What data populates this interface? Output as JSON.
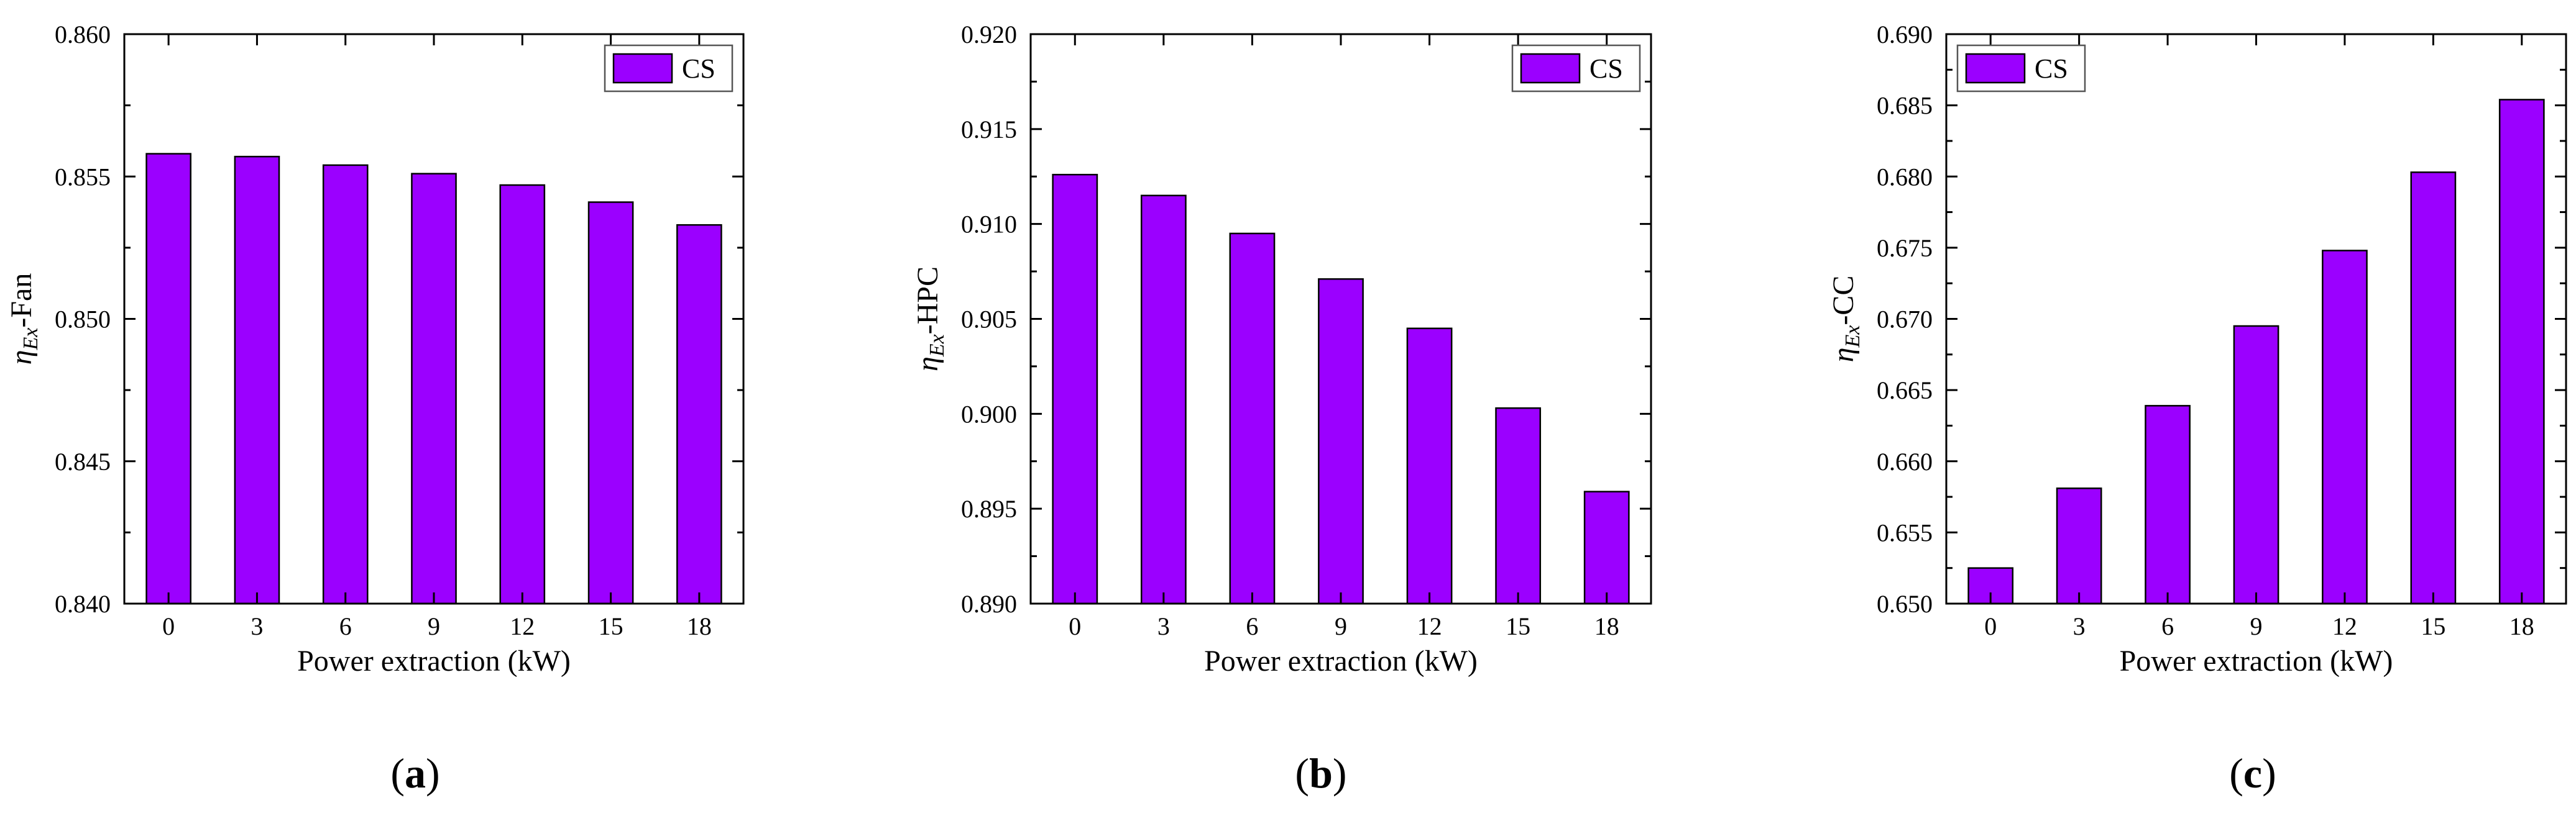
{
  "chart_data": [
    {
      "type": "bar",
      "panel_label": "a",
      "categories": [
        "0",
        "3",
        "6",
        "9",
        "12",
        "15",
        "18"
      ],
      "series": [
        {
          "name": "CS",
          "values": [
            0.8558,
            0.8557,
            0.8554,
            0.8551,
            0.8547,
            0.8541,
            0.8533
          ]
        }
      ],
      "xlabel": "Power extraction (kW)",
      "ylabel": {
        "symbol": "η",
        "subscript": "Ex",
        "suffix": "-Fan"
      },
      "ylim": [
        0.84,
        0.86
      ],
      "ymajor_ticks": [
        "0.840",
        "0.845",
        "0.850",
        "0.855",
        "0.860"
      ],
      "legend": {
        "entries": [
          "CS"
        ],
        "position": "top-right"
      }
    },
    {
      "type": "bar",
      "panel_label": "b",
      "categories": [
        "0",
        "3",
        "6",
        "9",
        "12",
        "15",
        "18"
      ],
      "series": [
        {
          "name": "CS",
          "values": [
            0.9126,
            0.9115,
            0.9095,
            0.9071,
            0.9045,
            0.9003,
            0.8959
          ]
        }
      ],
      "xlabel": "Power extraction (kW)",
      "ylabel": {
        "symbol": "η",
        "subscript": "Ex",
        "suffix": "-HPC"
      },
      "ylim": [
        0.89,
        0.92
      ],
      "ymajor_ticks": [
        "0.890",
        "0.895",
        "0.900",
        "0.905",
        "0.910",
        "0.915",
        "0.920"
      ],
      "legend": {
        "entries": [
          "CS"
        ],
        "position": "top-right"
      }
    },
    {
      "type": "bar",
      "panel_label": "c",
      "categories": [
        "0",
        "3",
        "6",
        "9",
        "12",
        "15",
        "18"
      ],
      "series": [
        {
          "name": "CS",
          "values": [
            0.6525,
            0.6581,
            0.6639,
            0.6695,
            0.6748,
            0.6803,
            0.6854
          ]
        }
      ],
      "xlabel": "Power extraction (kW)",
      "ylabel": {
        "symbol": "η",
        "subscript": "Ex",
        "suffix": "-CC"
      },
      "ylim": [
        0.65,
        0.69
      ],
      "ymajor_ticks": [
        "0.650",
        "0.655",
        "0.660",
        "0.665",
        "0.670",
        "0.675",
        "0.680",
        "0.685",
        "0.690"
      ],
      "legend": {
        "entries": [
          "CS"
        ],
        "position": "top-left"
      }
    }
  ],
  "colors": {
    "bar_fill": "#9B00FF",
    "bar_stroke": "#000000",
    "axis": "#000000"
  }
}
